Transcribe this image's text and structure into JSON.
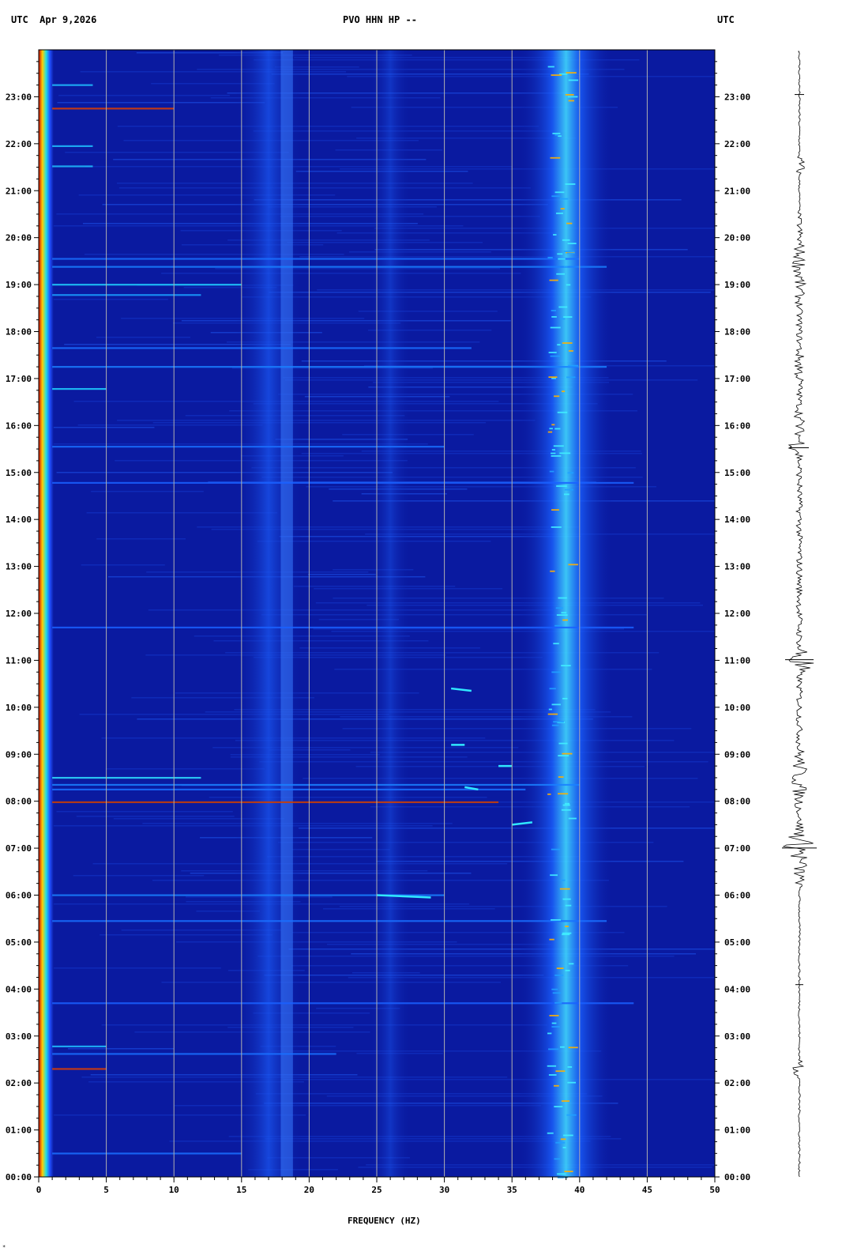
{
  "header": {
    "left": "UTC  Apr 9,2026",
    "center": "PVO HHN HP --",
    "right": "UTC"
  },
  "footer_mark": "*",
  "chart_data": {
    "type": "heatmap",
    "title": "PVO HHN HP --",
    "date": "Apr 9,2026",
    "timezone": "UTC",
    "xlabel": "FREQUENCY (HZ)",
    "ylabel": "",
    "xlim": [
      0,
      50
    ],
    "ylim": [
      "00:00",
      "24:00"
    ],
    "x_ticks": [
      0,
      5,
      10,
      15,
      20,
      25,
      30,
      35,
      40,
      45,
      50
    ],
    "y_ticks": [
      "00:00",
      "01:00",
      "02:00",
      "03:00",
      "04:00",
      "05:00",
      "06:00",
      "07:00",
      "08:00",
      "09:00",
      "10:00",
      "11:00",
      "12:00",
      "13:00",
      "14:00",
      "15:00",
      "16:00",
      "17:00",
      "18:00",
      "19:00",
      "20:00",
      "21:00",
      "22:00",
      "23:00"
    ],
    "gridlines_x": [
      5,
      10,
      15,
      20,
      25,
      30,
      35,
      40,
      45
    ],
    "colors": {
      "background": "#0a1aa0",
      "low": "#0022cc",
      "mid": "#00c8ff",
      "high": "#ffe000",
      "peak": "#d40000",
      "grid": "#b0b0b0"
    },
    "energy_bands_hz": [
      0.4,
      16,
      18.3,
      26,
      39
    ],
    "strong_events_utc": [
      "22:45",
      "19:00",
      "16:48",
      "08:25",
      "08:00",
      "06:00",
      "02:20"
    ]
  }
}
